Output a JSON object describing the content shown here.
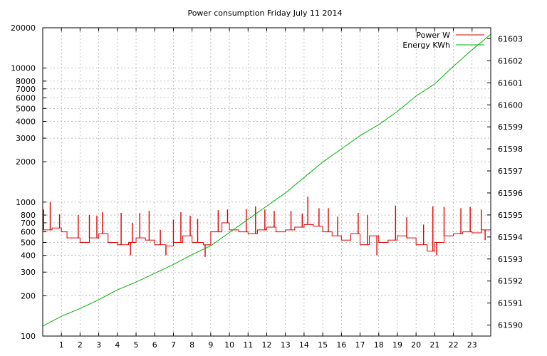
{
  "chart_data": {
    "type": "line",
    "title": "Power consumption Friday July 11 2014",
    "x_range": [
      0,
      24
    ],
    "x_ticks": [
      1,
      2,
      3,
      4,
      5,
      6,
      7,
      8,
      9,
      10,
      11,
      12,
      13,
      14,
      15,
      16,
      17,
      18,
      19,
      20,
      21,
      22,
      23
    ],
    "y_left": {
      "scale": "log",
      "range": [
        100,
        20000
      ],
      "ticks": [
        {
          "value": 100,
          "label": "100"
        },
        {
          "value": 200,
          "label": "200"
        },
        {
          "value": 300,
          "label": "300"
        },
        {
          "value": 400,
          "label": "400"
        },
        {
          "value": 500,
          "label": "500"
        },
        {
          "value": 600,
          "label": "600"
        },
        {
          "value": 700,
          "label": "700"
        },
        {
          "value": 800,
          "label": "800"
        },
        {
          "value": 1000,
          "label": "1000"
        },
        {
          "value": 2000,
          "label": "2000"
        },
        {
          "value": 3000,
          "label": "3000"
        },
        {
          "value": 4000,
          "label": "4000"
        },
        {
          "value": 5000,
          "label": "5000"
        },
        {
          "value": 6000,
          "label": "6000"
        },
        {
          "value": 7000,
          "label": "7000"
        },
        {
          "value": 8000,
          "label": "8000"
        },
        {
          "value": 10000,
          "label": "10000"
        },
        {
          "value": 20000,
          "label": "20000"
        }
      ]
    },
    "y_right": {
      "scale": "linear",
      "range": [
        61589.5,
        61603.5
      ],
      "ticks": [
        61590,
        61591,
        61592,
        61593,
        61594,
        61595,
        61596,
        61597,
        61598,
        61599,
        61600,
        61601,
        61602,
        61603
      ]
    },
    "grid": true,
    "legend_position": "top-right",
    "series": [
      {
        "name": "Power W",
        "axis": "left",
        "color": "#dd0000",
        "step_levels": [
          [
            0,
            620
          ],
          [
            0.5,
            640
          ],
          [
            1.0,
            600
          ],
          [
            1.3,
            540
          ],
          [
            2.0,
            500
          ],
          [
            2.5,
            540
          ],
          [
            3.0,
            580
          ],
          [
            3.5,
            500
          ],
          [
            4.0,
            480
          ],
          [
            4.6,
            500
          ],
          [
            5.0,
            540
          ],
          [
            5.5,
            520
          ],
          [
            6.0,
            480
          ],
          [
            6.6,
            470
          ],
          [
            7.0,
            500
          ],
          [
            7.5,
            560
          ],
          [
            8.0,
            500
          ],
          [
            8.6,
            480
          ],
          [
            9.0,
            600
          ],
          [
            9.6,
            700
          ],
          [
            10.0,
            620
          ],
          [
            10.5,
            600
          ],
          [
            11.0,
            580
          ],
          [
            11.5,
            620
          ],
          [
            12.0,
            650
          ],
          [
            12.5,
            600
          ],
          [
            13.0,
            620
          ],
          [
            13.5,
            650
          ],
          [
            14.0,
            680
          ],
          [
            14.5,
            660
          ],
          [
            15.0,
            600
          ],
          [
            15.5,
            560
          ],
          [
            16.0,
            520
          ],
          [
            16.5,
            580
          ],
          [
            17.0,
            480
          ],
          [
            17.5,
            560
          ],
          [
            18.0,
            500
          ],
          [
            18.5,
            520
          ],
          [
            19.0,
            560
          ],
          [
            19.5,
            540
          ],
          [
            20.0,
            480
          ],
          [
            20.6,
            430
          ],
          [
            21.0,
            500
          ],
          [
            21.5,
            560
          ],
          [
            22.0,
            580
          ],
          [
            22.5,
            600
          ],
          [
            23.0,
            590
          ],
          [
            23.5,
            620
          ],
          [
            24.0,
            620
          ]
        ],
        "spikes": [
          [
            0.05,
            880
          ],
          [
            0.4,
            1000
          ],
          [
            0.9,
            810
          ],
          [
            1.9,
            800
          ],
          [
            2.5,
            800
          ],
          [
            2.9,
            790
          ],
          [
            3.2,
            840
          ],
          [
            4.2,
            830
          ],
          [
            4.7,
            400
          ],
          [
            4.8,
            700
          ],
          [
            5.2,
            830
          ],
          [
            5.7,
            860
          ],
          [
            6.3,
            620
          ],
          [
            6.6,
            400
          ],
          [
            7.0,
            740
          ],
          [
            7.4,
            840
          ],
          [
            7.9,
            790
          ],
          [
            8.3,
            750
          ],
          [
            8.7,
            390
          ],
          [
            9.4,
            870
          ],
          [
            9.9,
            880
          ],
          [
            10.9,
            890
          ],
          [
            11.4,
            930
          ],
          [
            11.9,
            880
          ],
          [
            12.4,
            860
          ],
          [
            13.3,
            860
          ],
          [
            13.9,
            820
          ],
          [
            14.2,
            1100
          ],
          [
            14.8,
            900
          ],
          [
            15.3,
            900
          ],
          [
            15.8,
            780
          ],
          [
            16.9,
            830
          ],
          [
            17.4,
            800
          ],
          [
            17.9,
            400
          ],
          [
            18.9,
            940
          ],
          [
            19.5,
            770
          ],
          [
            20.4,
            680
          ],
          [
            20.9,
            930
          ],
          [
            21.1,
            400
          ],
          [
            21.5,
            920
          ],
          [
            22.4,
            900
          ],
          [
            22.9,
            920
          ],
          [
            23.5,
            880
          ],
          [
            23.7,
            520
          ]
        ]
      },
      {
        "name": "Energy KWh",
        "axis": "right",
        "color": "#00b000",
        "x": [
          0,
          1,
          2,
          3,
          4,
          5,
          6,
          7,
          8,
          9,
          10,
          11,
          12,
          13,
          14,
          15,
          16,
          17,
          18,
          19,
          20,
          21,
          22,
          23,
          24
        ],
        "values": [
          61589.95,
          61590.4,
          61590.75,
          61591.15,
          61591.6,
          61591.95,
          61592.35,
          61592.75,
          61593.2,
          61593.6,
          61594.2,
          61594.8,
          61595.4,
          61596.0,
          61596.7,
          61597.4,
          61598.0,
          61598.6,
          61599.1,
          61599.7,
          61600.4,
          61600.95,
          61601.75,
          61602.5,
          61603.2
        ]
      }
    ]
  }
}
